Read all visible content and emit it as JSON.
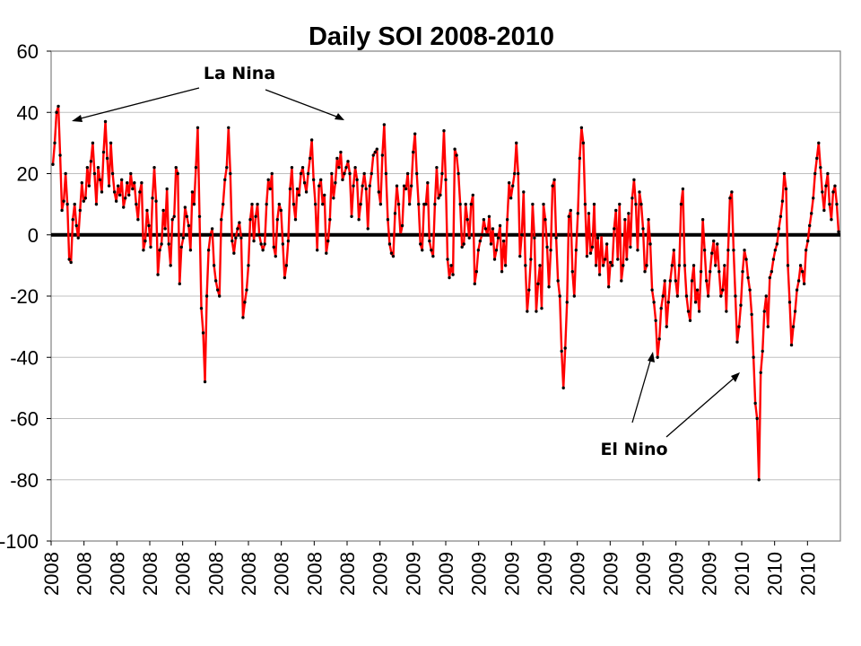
{
  "chart_data": {
    "type": "line",
    "title": "Daily SOI 2008-2010",
    "xlabel": "",
    "ylabel": "",
    "ylim": [
      -100,
      60
    ],
    "y_ticks": [
      60,
      40,
      20,
      0,
      -20,
      -40,
      -60,
      -80,
      -100
    ],
    "x_tick_labels": [
      "2008",
      "2008",
      "2008",
      "2008",
      "2008",
      "2008",
      "2008",
      "2008",
      "2008",
      "2008",
      "2009",
      "2009",
      "2009",
      "2009",
      "2009",
      "2009",
      "2009",
      "2009",
      "2009",
      "2009",
      "2009",
      "2010",
      "2010",
      "2010"
    ],
    "grid": true,
    "legend": "none",
    "colors": {
      "series": "#ff0000",
      "marker": "#000000",
      "zero_line": "#000000",
      "plot_border": "#808080",
      "grid": "#c0c0c0"
    },
    "series": [
      {
        "x_start": 0,
        "x_step": 1,
        "values": [
          23,
          30,
          40,
          42,
          26,
          8,
          11,
          20,
          10,
          -8,
          -9,
          5,
          10,
          3,
          -1,
          8,
          17,
          11,
          12,
          22,
          16,
          24,
          30,
          20,
          10,
          22,
          18,
          14,
          27,
          37,
          25,
          16,
          30,
          20,
          14,
          11,
          16,
          13,
          18,
          9,
          12,
          17,
          13,
          20,
          15,
          17,
          10,
          5,
          14,
          17,
          -5,
          -2,
          8,
          3,
          -4,
          12,
          22,
          11,
          -13,
          -5,
          -3,
          8,
          2,
          15,
          -3,
          -10,
          5,
          6,
          22,
          20,
          -16,
          -4,
          -1,
          9,
          6,
          3,
          -5,
          14,
          10,
          22,
          35,
          6,
          -24,
          -32,
          -48,
          -20,
          -5,
          0,
          2,
          -10,
          -15,
          -18,
          -20,
          5,
          10,
          18,
          22,
          35,
          20,
          -2,
          -6,
          -1,
          2,
          4,
          -1,
          -27,
          -22,
          -18,
          -10,
          5,
          10,
          -2,
          6,
          10,
          0,
          -3,
          -5,
          -3,
          10,
          18,
          15,
          20,
          -4,
          -7,
          5,
          10,
          8,
          -3,
          -14,
          -10,
          -2,
          15,
          22,
          10,
          5,
          15,
          13,
          20,
          22,
          17,
          14,
          20,
          25,
          31,
          18,
          10,
          -5,
          16,
          18,
          10,
          13,
          -6,
          -2,
          5,
          20,
          12,
          17,
          25,
          22,
          27,
          18,
          20,
          22,
          24,
          20,
          6,
          16,
          22,
          18,
          5,
          10,
          16,
          20,
          15,
          2,
          16,
          20,
          26,
          27,
          28,
          14,
          10,
          26,
          36,
          20,
          5,
          -3,
          -6,
          -7,
          7,
          16,
          10,
          0,
          3,
          16,
          15,
          20,
          10,
          16,
          27,
          33,
          20,
          10,
          -3,
          -5,
          10,
          10,
          17,
          -2,
          -5,
          -7,
          10,
          22,
          12,
          13,
          20,
          34,
          18,
          -8,
          -14,
          -10,
          -13,
          28,
          26,
          20,
          10,
          -4,
          -3,
          10,
          5,
          -1,
          10,
          13,
          -16,
          -12,
          -5,
          -2,
          0,
          5,
          2,
          0,
          6,
          -3,
          2,
          -8,
          -5,
          -1,
          3,
          -12,
          -2,
          -10,
          5,
          17,
          12,
          16,
          20,
          30,
          20,
          -7,
          0,
          14,
          -10,
          -25,
          -18,
          -8,
          10,
          -1,
          -25,
          -16,
          -10,
          -24,
          10,
          5,
          -4,
          -17,
          -5,
          16,
          18,
          -1,
          -15,
          -20,
          -38,
          -50,
          -37,
          -22,
          6,
          8,
          -12,
          -20,
          -5,
          7,
          25,
          35,
          30,
          10,
          -7,
          7,
          -6,
          -4,
          10,
          -10,
          -1,
          -13,
          0,
          -10,
          -8,
          -3,
          -17,
          -9,
          -10,
          2,
          8,
          -8,
          10,
          -15,
          -10,
          5,
          -8,
          7,
          -4,
          12,
          18,
          10,
          -5,
          14,
          10,
          2,
          -12,
          -10,
          5,
          -3,
          -18,
          -22,
          -28,
          -40,
          -34,
          -24,
          -20,
          -15,
          -30,
          -22,
          -15,
          -10,
          -5,
          -15,
          -20,
          -10,
          10,
          15,
          -10,
          -20,
          -25,
          -28,
          -15,
          -10,
          -22,
          -18,
          -25,
          -12,
          5,
          -5,
          -15,
          -20,
          -12,
          -6,
          -2,
          -10,
          -3,
          -12,
          -20,
          -18,
          -10,
          -25,
          -5,
          12,
          14,
          -5,
          -20,
          -35,
          -30,
          -23,
          -12,
          -5,
          -8,
          -14,
          -18,
          -26,
          -40,
          -55,
          -60,
          -80,
          -45,
          -38,
          -25,
          -20,
          -30,
          -14,
          -12,
          -8,
          -5,
          -3,
          2,
          6,
          11,
          20,
          15,
          -10,
          -22,
          -36,
          -30,
          -25,
          -18,
          -15,
          -10,
          -12,
          -16,
          -5,
          -2,
          3,
          7,
          12,
          20,
          25,
          30,
          22,
          14,
          8,
          16,
          20,
          10,
          5,
          14,
          16,
          10,
          1
        ]
      }
    ]
  },
  "annotations": {
    "la_nina": "La Nina",
    "el_nino": "El Nino"
  }
}
